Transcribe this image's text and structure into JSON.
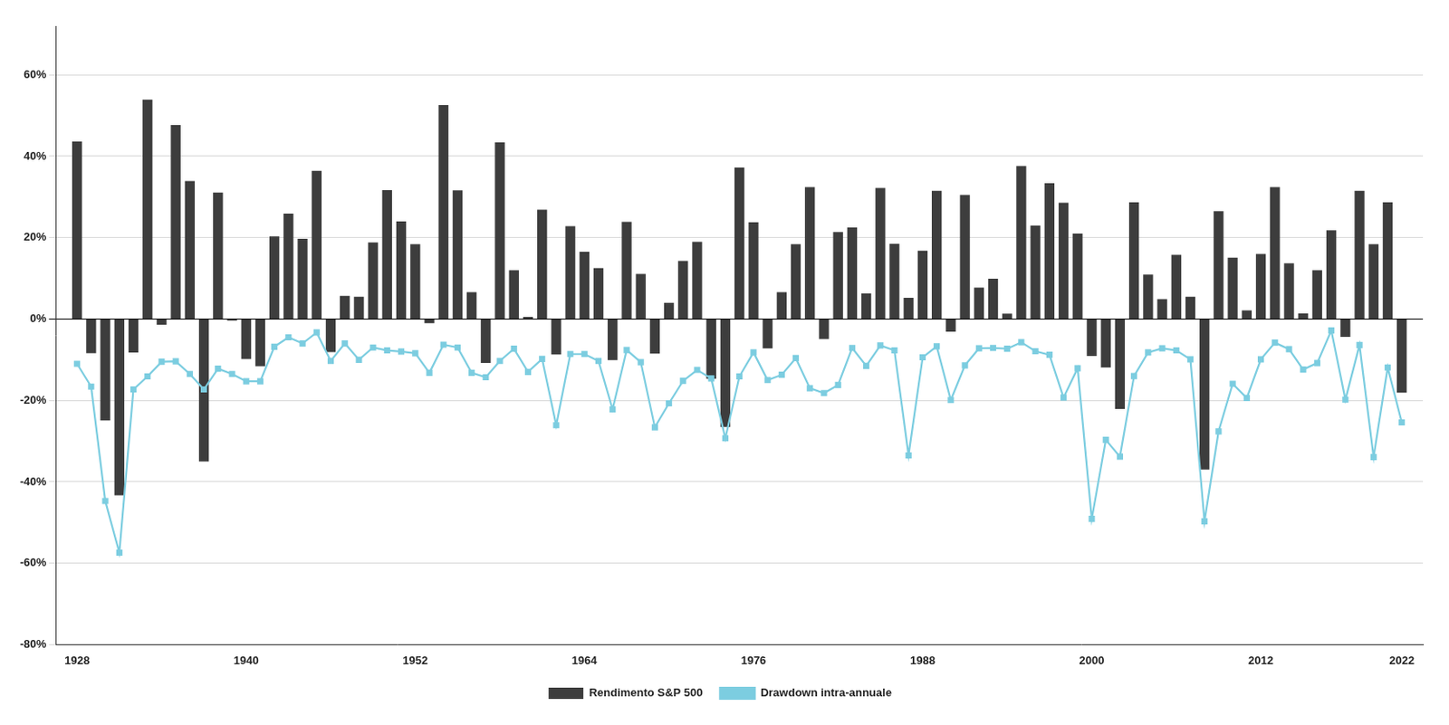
{
  "chart_data": {
    "type": "bar",
    "x": [
      1928,
      1929,
      1930,
      1931,
      1932,
      1933,
      1934,
      1935,
      1936,
      1937,
      1938,
      1939,
      1940,
      1941,
      1942,
      1943,
      1944,
      1945,
      1946,
      1947,
      1948,
      1949,
      1950,
      1951,
      1952,
      1953,
      1954,
      1955,
      1956,
      1957,
      1958,
      1959,
      1960,
      1961,
      1962,
      1963,
      1964,
      1965,
      1966,
      1967,
      1968,
      1969,
      1970,
      1971,
      1972,
      1973,
      1974,
      1975,
      1976,
      1977,
      1978,
      1979,
      1980,
      1981,
      1982,
      1983,
      1984,
      1985,
      1986,
      1987,
      1988,
      1989,
      1990,
      1991,
      1992,
      1993,
      1994,
      1995,
      1996,
      1997,
      1998,
      1999,
      2000,
      2001,
      2002,
      2003,
      2004,
      2005,
      2006,
      2007,
      2008,
      2009,
      2010,
      2011,
      2012,
      2013,
      2014,
      2015,
      2016,
      2017,
      2018,
      2019,
      2020,
      2021,
      2022
    ],
    "series": [
      {
        "name": "Rendimento S&P 500",
        "type": "bar",
        "color": "#3d3d3d",
        "values": [
          43.6,
          -8.4,
          -24.9,
          -43.3,
          -8.2,
          53.9,
          -1.4,
          47.7,
          33.9,
          -35.0,
          31.1,
          -0.4,
          -9.8,
          -11.6,
          20.3,
          25.9,
          19.7,
          36.4,
          -8.1,
          5.7,
          5.5,
          18.8,
          31.7,
          24.0,
          18.4,
          -1.0,
          52.6,
          31.6,
          6.6,
          -10.8,
          43.4,
          12.0,
          0.5,
          26.9,
          -8.7,
          22.8,
          16.5,
          12.5,
          -10.1,
          23.9,
          11.1,
          -8.5,
          4.0,
          14.3,
          19.0,
          -14.7,
          -26.5,
          37.2,
          23.8,
          -7.2,
          6.6,
          18.4,
          32.4,
          -4.9,
          21.4,
          22.5,
          6.3,
          32.2,
          18.5,
          5.2,
          16.8,
          31.5,
          -3.1,
          30.5,
          7.7,
          9.9,
          1.3,
          37.6,
          23.0,
          33.4,
          28.6,
          21.0,
          -9.1,
          -11.9,
          -22.1,
          28.7,
          10.9,
          4.9,
          15.8,
          5.5,
          -37.0,
          26.5,
          15.1,
          2.1,
          16.0,
          32.4,
          13.7,
          1.4,
          12.0,
          21.8,
          -4.4,
          31.5,
          18.4,
          28.7,
          -18.1
        ]
      },
      {
        "name": "Drawdown intra-annuale",
        "type": "line",
        "color": "#7ccde0",
        "marker": "square",
        "values": [
          -11.0,
          -16.6,
          -44.7,
          -57.4,
          -17.3,
          -14.1,
          -10.5,
          -10.4,
          -13.5,
          -17.3,
          -12.2,
          -13.5,
          -15.3,
          -15.3,
          -6.8,
          -4.5,
          -6.0,
          -3.3,
          -10.3,
          -6.0,
          -10.0,
          -7.0,
          -7.7,
          -8.0,
          -8.4,
          -13.2,
          -6.3,
          -7.0,
          -13.2,
          -14.3,
          -10.3,
          -7.3,
          -13.0,
          -9.8,
          -26.1,
          -8.6,
          -8.6,
          -10.3,
          -22.2,
          -7.6,
          -10.6,
          -26.6,
          -20.7,
          -15.2,
          -12.5,
          -14.6,
          -29.3,
          -14.1,
          -8.2,
          -15.0,
          -13.7,
          -9.6,
          -17.0,
          -18.2,
          -16.2,
          -7.1,
          -11.5,
          -6.5,
          -7.7,
          -33.5,
          -9.4,
          -6.7,
          -19.9,
          -11.4,
          -7.2,
          -7.1,
          -7.3,
          -5.7,
          -7.9,
          -8.8,
          -19.3,
          -12.1,
          -49.1,
          -29.7,
          -33.8,
          -14.0,
          -8.2,
          -7.2,
          -7.7,
          -9.9,
          -49.7,
          -27.6,
          -15.9,
          -19.4,
          -9.9,
          -5.8,
          -7.4,
          -12.4,
          -10.8,
          -2.8,
          -19.8,
          -6.4,
          -33.9,
          -11.9,
          -25.4
        ]
      }
    ],
    "xlim": [
      1926.5,
      2023.5
    ],
    "xticks": [
      1928,
      1940,
      1952,
      1964,
      1976,
      1988,
      2000,
      2012,
      2022
    ],
    "ylim": [
      -80,
      72
    ],
    "yticks": [
      {
        "value": -80,
        "label": "-80%"
      },
      {
        "value": -60,
        "label": "-60%"
      },
      {
        "value": -40,
        "label": "-40%"
      },
      {
        "value": -20,
        "label": "-20%"
      },
      {
        "value": 0,
        "label": "0%"
      },
      {
        "value": 20,
        "label": "20%"
      },
      {
        "value": 40,
        "label": "40%"
      },
      {
        "value": 60,
        "label": "60%"
      }
    ],
    "grid": true,
    "legend": "bottom"
  }
}
